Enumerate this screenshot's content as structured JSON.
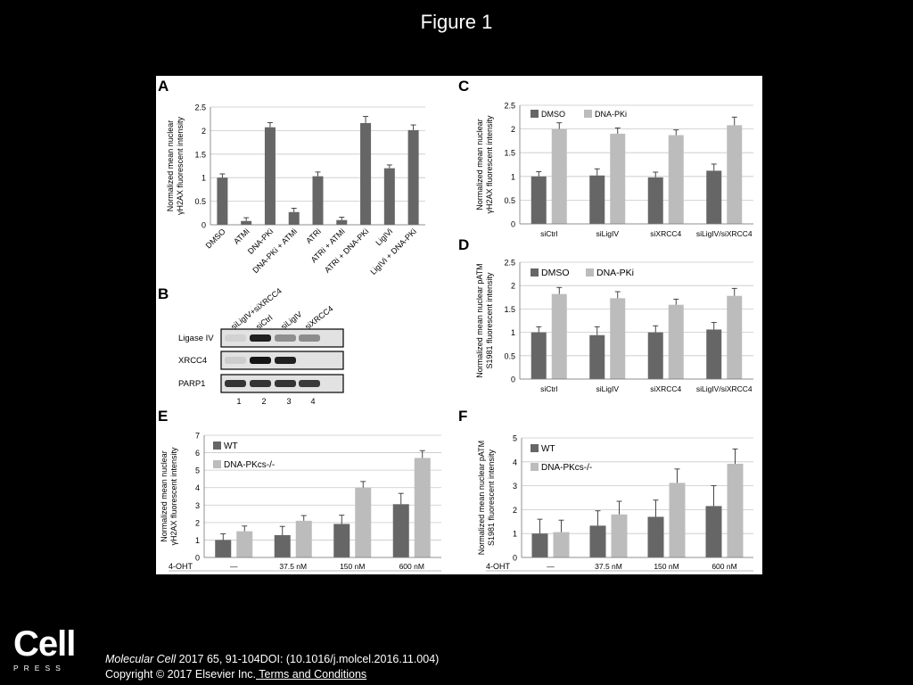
{
  "title": "Figure 1",
  "colors": {
    "dark": "#666666",
    "light": "#bcbcbc",
    "blot_bg": "#e2e2e2",
    "blot_band": "#151515"
  },
  "chart_data": [
    {
      "panel": "A",
      "type": "bar",
      "ylabel_lines": [
        "Normalized mean nuclear",
        "γH2AX  fluorescent intensity"
      ],
      "ylim": [
        0,
        2.5
      ],
      "yticks": [
        "0",
        "0.5",
        "1",
        "1.5",
        "2",
        "2.5"
      ],
      "categories": [
        "DMSO",
        "ATMi",
        "DNA-PKi",
        "DNA-PKi + ATMi",
        "ATRi",
        "ATRi + ATMi",
        "ATRi + DNA-PKi",
        "LigIVi",
        "LigIVi + DNA-PKi"
      ],
      "series": [
        {
          "name": "",
          "color": "dark",
          "values": [
            1.0,
            0.08,
            2.07,
            0.27,
            1.03,
            0.1,
            2.16,
            1.2,
            2.01
          ],
          "errors": [
            0.08,
            0.07,
            0.1,
            0.08,
            0.09,
            0.06,
            0.14,
            0.07,
            0.11
          ]
        }
      ]
    },
    {
      "panel": "C",
      "type": "bar",
      "ylabel_lines": [
        "Normalized mean nuclear",
        "γH2AX  fluorescent intensity"
      ],
      "ylim": [
        0,
        2.5
      ],
      "yticks": [
        "0",
        "0.5",
        "1",
        "1.5",
        "2",
        "2.5"
      ],
      "categories": [
        "siCtrl",
        "siLigIV",
        "siXRCC4",
        "siLigIV/siXRCC4"
      ],
      "series": [
        {
          "name": "DMSO",
          "color": "dark",
          "values": [
            1.0,
            1.02,
            0.98,
            1.12
          ],
          "errors": [
            0.1,
            0.14,
            0.11,
            0.14
          ]
        },
        {
          "name": "DNA-PKi",
          "color": "light",
          "values": [
            2.0,
            1.9,
            1.87,
            2.08
          ],
          "errors": [
            0.13,
            0.12,
            0.11,
            0.17
          ]
        }
      ]
    },
    {
      "panel": "D",
      "type": "bar",
      "ylabel_lines": [
        "Normalized mean nuclear pATM",
        "S1981 fluorescent intensity"
      ],
      "ylim": [
        0,
        2.5
      ],
      "yticks": [
        "0",
        "0.5",
        "1",
        "1.5",
        "2",
        "2.5"
      ],
      "categories": [
        "siCtrl",
        "siLigIV",
        "siXRCC4",
        "siLigIV/siXRCC4"
      ],
      "series": [
        {
          "name": "DMSO",
          "color": "dark",
          "values": [
            1.0,
            0.94,
            1.0,
            1.06
          ],
          "errors": [
            0.12,
            0.18,
            0.14,
            0.15
          ]
        },
        {
          "name": "DNA-PKi",
          "color": "light",
          "values": [
            1.82,
            1.73,
            1.59,
            1.78
          ],
          "errors": [
            0.14,
            0.14,
            0.12,
            0.16
          ]
        }
      ]
    },
    {
      "panel": "E",
      "type": "bar",
      "ylabel_lines": [
        "Normalized mean nuclear",
        "γH2AX  fluorescent intensity"
      ],
      "ylim": [
        0,
        7
      ],
      "yticks": [
        "0",
        "1",
        "2",
        "3",
        "4",
        "5",
        "6",
        "7"
      ],
      "xprefix": "4-OHT",
      "categories": [
        "—",
        "37.5 nM",
        "150 nM",
        "600 nM"
      ],
      "series": [
        {
          "name": "WT",
          "color": "dark",
          "values": [
            1.0,
            1.28,
            1.92,
            3.05
          ],
          "errors": [
            0.35,
            0.5,
            0.5,
            0.62
          ]
        },
        {
          "name": "DNA-PKcs-/-",
          "color": "light",
          "values": [
            1.5,
            2.1,
            4.0,
            5.7
          ],
          "errors": [
            0.3,
            0.3,
            0.35,
            0.42
          ]
        }
      ]
    },
    {
      "panel": "F",
      "type": "bar",
      "ylabel_lines": [
        "Normalized mean nuclear pATM",
        "S1981 fluorescent intensity"
      ],
      "ylim": [
        0,
        5
      ],
      "yticks": [
        "0",
        "1",
        "2",
        "3",
        "4",
        "5"
      ],
      "xprefix": "4-OHT",
      "categories": [
        "—",
        "37.5 nM",
        "150 nM",
        "600 nM"
      ],
      "series": [
        {
          "name": "WT",
          "color": "dark",
          "values": [
            1.0,
            1.33,
            1.7,
            2.15
          ],
          "errors": [
            0.6,
            0.62,
            0.7,
            0.85
          ]
        },
        {
          "name": "DNA-PKcs-/-",
          "color": "light",
          "values": [
            1.06,
            1.8,
            3.12,
            3.92
          ],
          "errors": [
            0.5,
            0.55,
            0.58,
            0.62
          ]
        }
      ]
    }
  ],
  "blot": {
    "panel": "B",
    "lane_labels": [
      "siLigIV+siXRCC4",
      "siCtrl",
      "siLigIV",
      "siXRCC4"
    ],
    "rows": [
      {
        "label": "Ligase IV",
        "bands": [
          0.08,
          0.95,
          0.4,
          0.42
        ]
      },
      {
        "label": "XRCC4",
        "bands": [
          0.1,
          1.0,
          0.95,
          0.0
        ]
      },
      {
        "label": "PARP1",
        "bands": [
          0.85,
          0.85,
          0.85,
          0.82
        ]
      }
    ],
    "lane_numbers": [
      "1",
      "2",
      "3",
      "4"
    ]
  },
  "footer": {
    "logo_main": "Cell",
    "logo_sub": "PRESS",
    "journal": "Molecular Cell",
    "citation": " 2017 65, 91-104DOI: (10.1016/j.molcel.2016.11.004)",
    "copyright": "Copyright © 2017 Elsevier Inc.",
    "terms_link": " Terms and Conditions"
  }
}
